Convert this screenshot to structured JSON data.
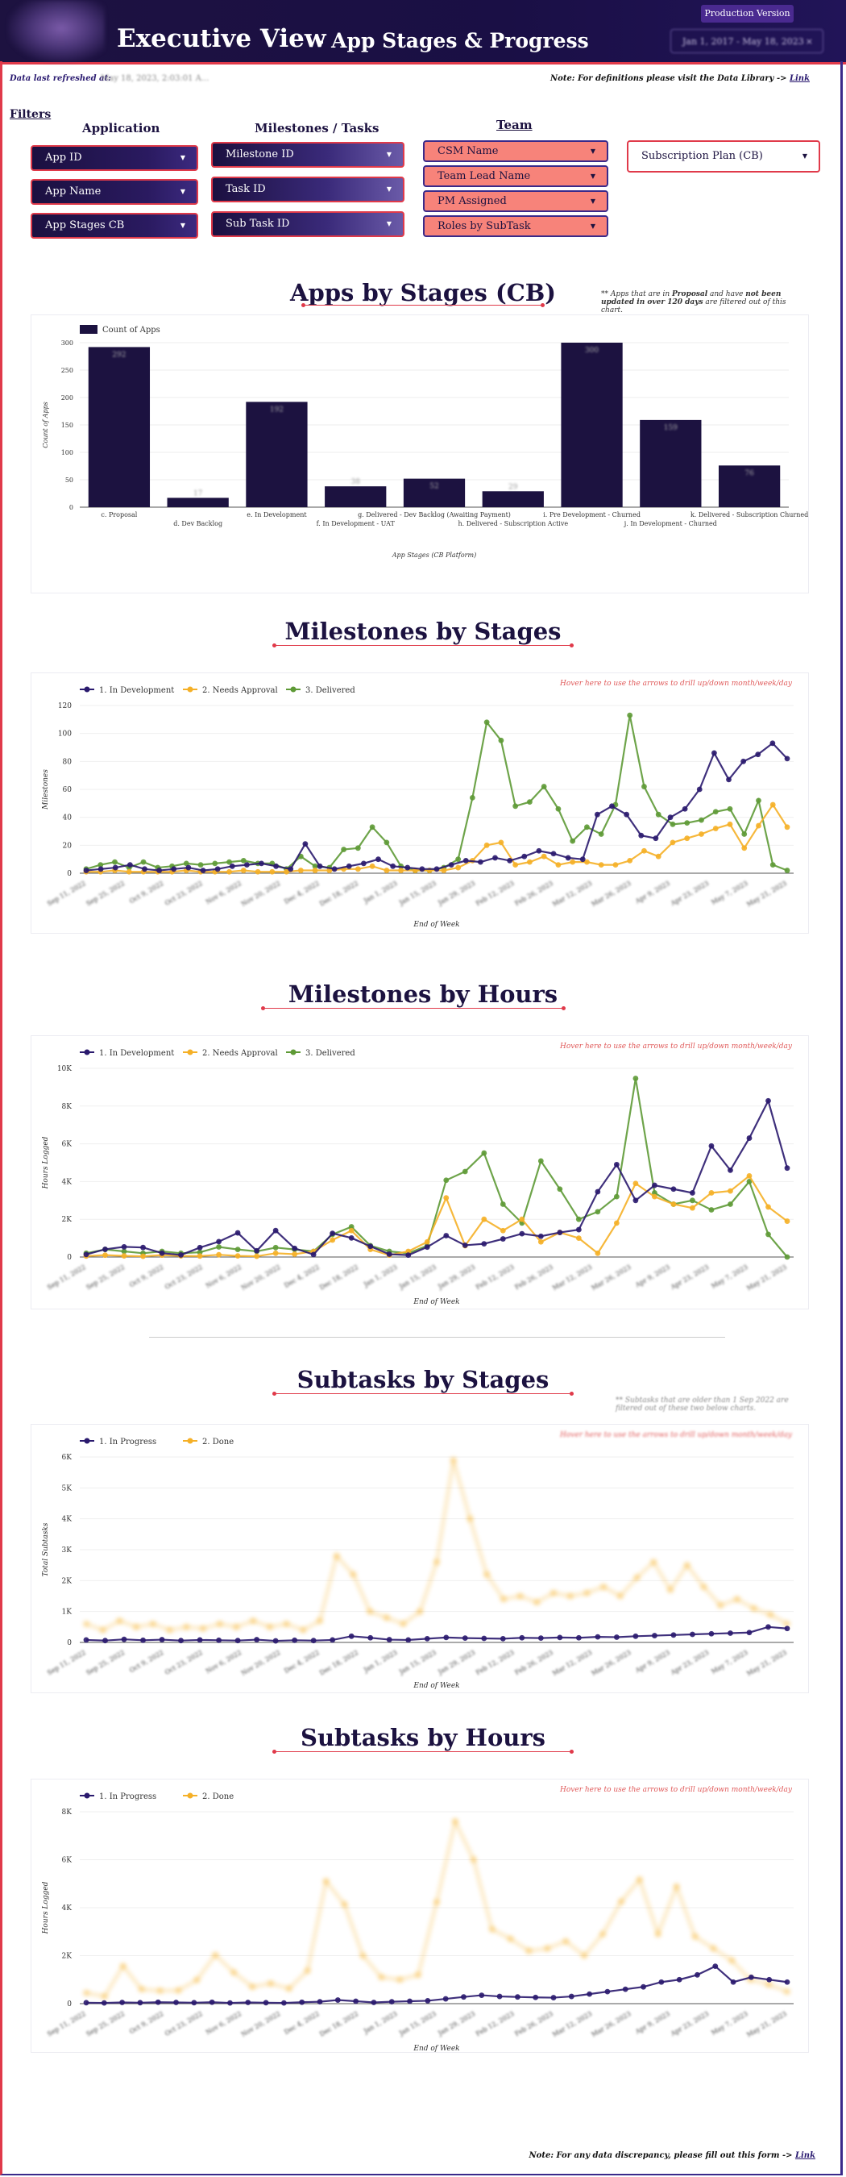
{
  "header": {
    "title": "Executive View",
    "subtitle": "- App Stages & Progress",
    "badge": "Production Version",
    "date_range": "Jan 1, 2017 - May 18, 2023",
    "date_range_clear": "×"
  },
  "refresh": {
    "label": "Data last refreshed at:",
    "value": "May 18, 2023, 2:03:01 A..."
  },
  "definitions_note": {
    "text": "Note: For definitions please visit the Data Library -> ",
    "link": "Link"
  },
  "filters": {
    "label": "Filters",
    "application": {
      "heading": "Application",
      "items": [
        "App ID",
        "App Name",
        "App Stages CB"
      ]
    },
    "milestones": {
      "heading": "Milestones / Tasks",
      "items": [
        "Milestone ID",
        "Task ID",
        "Sub Task ID"
      ]
    },
    "team": {
      "heading": "Team",
      "items": [
        "CSM Name",
        "Team Lead Name",
        "PM Assigned",
        "Roles by SubTask"
      ]
    },
    "subscription": "Subscription Plan (CB)",
    "caret": "▼"
  },
  "colors": {
    "navy": "#1c1240",
    "accent_red": "#e03a4a",
    "salmon": "#f7837a",
    "series_dev": "#2a1a6e",
    "series_approval": "#f5b027",
    "series_delivered": "#5e9a36"
  },
  "sections": {
    "apps_by_stages": {
      "title": "Apps by Stages (CB)",
      "note_parts": [
        "** Apps that are in ",
        "Proposal",
        " and have ",
        "not been updated  in over 120 days",
        " are filtered out of this chart."
      ]
    },
    "milestones_by_stages": {
      "title": "Milestones by Stages",
      "hover": "Hover here to use the arrows to drill up/down month/week/day"
    },
    "milestones_by_hours": {
      "title": "Milestones by Hours",
      "hover": "Hover here to use the arrows to drill up/down month/week/day"
    },
    "subtasks_by_stages": {
      "title": "Subtasks by Stages",
      "note": "** Subtasks that are older than 1 Sep 2022 are filtered out of these two below charts.",
      "hover": "Hover here to use the arrows to drill up/down month/week/day"
    },
    "subtasks_by_hours": {
      "title": "Subtasks by Hours",
      "hover": "Hover here to use the arrows to drill up/down month/week/day"
    }
  },
  "footer": {
    "text": "Note: For any data discrepancy, please fill out this form -> ",
    "link": "Link"
  },
  "chart_data": [
    {
      "id": "apps_by_stages",
      "type": "bar",
      "legend": [
        "Count of Apps"
      ],
      "ylabel": "Count of Apps",
      "xlabel": "App Stages (CB Platform)",
      "ylim": [
        0,
        300
      ],
      "yticks": [
        0,
        50,
        100,
        150,
        200,
        250,
        300
      ],
      "categories": [
        "c. Proposal",
        "d. Dev Backlog",
        "e. In Development",
        "f. In Development - UAT",
        "g. Delivered - Dev Backlog (Awaiting Payment)",
        "h. Delivered - Subscription Active",
        "i. Pre Development - Churned",
        "j. In Development - Churned",
        "k. Delivered - Subscription Churned"
      ],
      "values": [
        292,
        17,
        192,
        38,
        52,
        29,
        300,
        159,
        76
      ],
      "grid": true
    },
    {
      "id": "milestones_by_stages",
      "type": "line",
      "ylabel": "Milestones",
      "xlabel": "End of Week",
      "ylim": [
        0,
        120
      ],
      "yticks": [
        0,
        20,
        40,
        60,
        80,
        100,
        120
      ],
      "xticks": [
        "Sep 11, 2022",
        "Sep 25, 2022",
        "Oct 9, 2022",
        "Oct 23, 2022",
        "Nov 6, 2022",
        "Nov 20, 2022",
        "Dec 4, 2022",
        "Dec 18, 2022",
        "Jan 1, 2023",
        "Jan 15, 2023",
        "Jan 29, 2023",
        "Feb 12, 2023",
        "Feb 26, 2023",
        "Mar 12, 2023",
        "Mar 26, 2023",
        "Apr 9, 2023",
        "Apr 23, 2023",
        "May 7, 2023",
        "May 21, 2023"
      ],
      "series": [
        {
          "name": "1. In Development",
          "values": [
            2,
            3,
            4,
            6,
            3,
            2,
            3,
            4,
            2,
            3,
            5,
            6,
            7,
            5,
            3,
            21,
            5,
            3,
            5,
            7,
            10,
            5,
            4,
            3,
            3,
            6,
            9,
            8,
            11,
            9,
            12,
            16,
            14,
            11,
            10,
            42,
            48,
            42,
            27,
            25,
            40,
            46,
            60,
            86,
            67,
            80,
            85,
            93,
            82
          ]
        },
        {
          "name": "2. Needs Approval",
          "values": [
            1,
            1,
            2,
            1,
            1,
            1,
            1,
            2,
            1,
            1,
            1,
            2,
            1,
            1,
            1,
            2,
            2,
            2,
            3,
            3,
            5,
            2,
            2,
            2,
            2,
            2,
            4,
            9,
            20,
            22,
            6,
            8,
            12,
            6,
            8,
            8,
            6,
            6,
            9,
            16,
            12,
            22,
            25,
            28,
            32,
            35,
            18,
            34,
            49,
            33
          ]
        },
        {
          "name": "3. Delivered",
          "values": [
            3,
            6,
            8,
            4,
            8,
            4,
            5,
            7,
            6,
            7,
            8,
            9,
            7,
            7,
            3,
            12,
            5,
            4,
            17,
            18,
            33,
            22,
            5,
            2,
            2,
            4,
            10,
            54,
            108,
            95,
            48,
            51,
            62,
            46,
            23,
            33,
            28,
            49,
            113,
            62,
            42,
            35,
            36,
            38,
            44,
            46,
            28,
            52,
            6,
            2
          ]
        }
      ],
      "grid": true
    },
    {
      "id": "milestones_by_hours",
      "type": "line",
      "ylabel": "Hours Logged",
      "xlabel": "End of Week",
      "ylim": [
        0,
        10000
      ],
      "yticks": [
        "0",
        "2K",
        "4K",
        "6K",
        "8K",
        "10K"
      ],
      "xticks": [
        "Sep 11, 2022",
        "Sep 25, 2022",
        "Oct 9, 2022",
        "Oct 23, 2022",
        "Nov 6, 2022",
        "Nov 20, 2022",
        "Dec 4, 2022",
        "Dec 18, 2022",
        "Jan 1, 2023",
        "Jan 15, 2023",
        "Jan 29, 2023",
        "Feb 12, 2023",
        "Feb 26, 2023",
        "Mar 12, 2023",
        "Mar 26, 2023",
        "Apr 9, 2023",
        "Apr 23, 2023",
        "May 7, 2023",
        "May 21, 2023"
      ],
      "series": [
        {
          "name": "1. In Development",
          "values": [
            134,
            409,
            538,
            506,
            205,
            109,
            499,
            816,
            1279,
            330,
            1402,
            461,
            130,
            1254,
            1011,
            565,
            150,
            100,
            526,
            1134,
            623,
            700,
            960,
            1235,
            1100,
            1300,
            1450,
            3460,
            4900,
            3000,
            3800,
            3600,
            3400,
            5886,
            4600,
            6300,
            8279,
            4715
          ]
        },
        {
          "name": "2. Needs Approval",
          "values": [
            50,
            100,
            60,
            40,
            100,
            60,
            50,
            120,
            60,
            40,
            200,
            150,
            300,
            900,
            1400,
            400,
            100,
            300,
            800,
            3135,
            600,
            2000,
            1400,
            2000,
            800,
            1300,
            1000,
            200,
            1800,
            3900,
            3200,
            2800,
            2600,
            3400,
            3500,
            4300,
            2653,
            1900
          ]
        },
        {
          "name": "3. Delivered",
          "values": [
            200,
            400,
            300,
            200,
            300,
            200,
            250,
            535,
            400,
            300,
            500,
            400,
            300,
            1200,
            1600,
            600,
            300,
            200,
            600,
            4071,
            4531,
            5510,
            2800,
            1800,
            5089,
            3600,
            2000,
            2400,
            3200,
            9466,
            3400,
            2800,
            3000,
            2500,
            2800,
            4000,
            1200,
            0
          ]
        }
      ],
      "grid": true
    },
    {
      "id": "subtasks_by_stages",
      "type": "line",
      "ylabel": "Total Subtasks",
      "xlabel": "End of Week",
      "ylim": [
        0,
        6000
      ],
      "yticks": [
        "0",
        "1K",
        "2K",
        "3K",
        "4K",
        "5K",
        "6K"
      ],
      "xticks": [
        "Sep 11, 2022",
        "Sep 25, 2022",
        "Oct 9, 2022",
        "Oct 23, 2022",
        "Nov 6, 2022",
        "Nov 20, 2022",
        "Dec 4, 2022",
        "Dec 18, 2022",
        "Jan 1, 2023",
        "Jan 15, 2023",
        "Jan 29, 2023",
        "Feb 12, 2023",
        "Feb 26, 2023",
        "Mar 12, 2023",
        "Mar 26, 2023",
        "Apr 9, 2023",
        "Apr 23, 2023",
        "May 7, 2023",
        "May 21, 2023"
      ],
      "series": [
        {
          "name": "1. In Progress",
          "values": [
            80,
            60,
            100,
            70,
            90,
            60,
            80,
            70,
            60,
            90,
            50,
            70,
            60,
            80,
            200,
            150,
            90,
            80,
            120,
            160,
            140,
            130,
            120,
            150,
            140,
            160,
            150,
            180,
            170,
            200,
            220,
            240,
            260,
            280,
            300,
            320,
            500,
            450
          ]
        },
        {
          "name": "2. Done",
          "values": [
            600,
            400,
            700,
            500,
            600,
            400,
            500,
            450,
            600,
            500,
            700,
            500,
            600,
            400,
            700,
            2800,
            2200,
            1000,
            800,
            600,
            1000,
            2600,
            5900,
            4000,
            2200,
            1400,
            1500,
            1300,
            1600,
            1500,
            1600,
            1800,
            1500,
            2100,
            2600,
            1700,
            2500,
            1800,
            1200,
            1400,
            1100,
            900,
            600
          ]
        }
      ],
      "grid": true
    },
    {
      "id": "subtasks_by_hours",
      "type": "line",
      "ylabel": "Hours Logged",
      "xlabel": "End of Week",
      "ylim": [
        0,
        8000
      ],
      "yticks": [
        "0",
        "2K",
        "4K",
        "6K",
        "8K"
      ],
      "xticks": [
        "Sep 11, 2022",
        "Sep 25, 2022",
        "Oct 9, 2022",
        "Oct 23, 2022",
        "Nov 6, 2022",
        "Nov 20, 2022",
        "Dec 4, 2022",
        "Dec 18, 2022",
        "Jan 1, 2023",
        "Jan 15, 2023",
        "Jan 29, 2023",
        "Feb 12, 2023",
        "Feb 26, 2023",
        "Mar 12, 2023",
        "Mar 26, 2023",
        "Apr 9, 2023",
        "Apr 23, 2023",
        "May 7, 2023",
        "May 21, 2023"
      ],
      "series": [
        {
          "name": "1. In Progress",
          "values": [
            40,
            30,
            50,
            40,
            60,
            50,
            40,
            60,
            30,
            50,
            40,
            30,
            60,
            80,
            150,
            100,
            50,
            80,
            100,
            120,
            200,
            280,
            350,
            300,
            280,
            260,
            250,
            300,
            400,
            500,
            600,
            700,
            900,
            1000,
            1200,
            1559,
            900,
            1100,
            1000,
            900
          ]
        },
        {
          "name": "2. Done",
          "values": [
            450,
            300,
            1569,
            600,
            540,
            550,
            986,
            2030,
            1300,
            700,
            843,
            624,
            1374,
            5108,
            4136,
            2000,
            1100,
            1000,
            1200,
            4233,
            7600,
            6000,
            3100,
            2700,
            2200,
            2300,
            2600,
            2000,
            2900,
            4259,
            5176,
            2900,
            4882,
            2800,
            2300,
            1800,
            1000,
            800,
            500
          ]
        }
      ],
      "grid": true
    }
  ]
}
